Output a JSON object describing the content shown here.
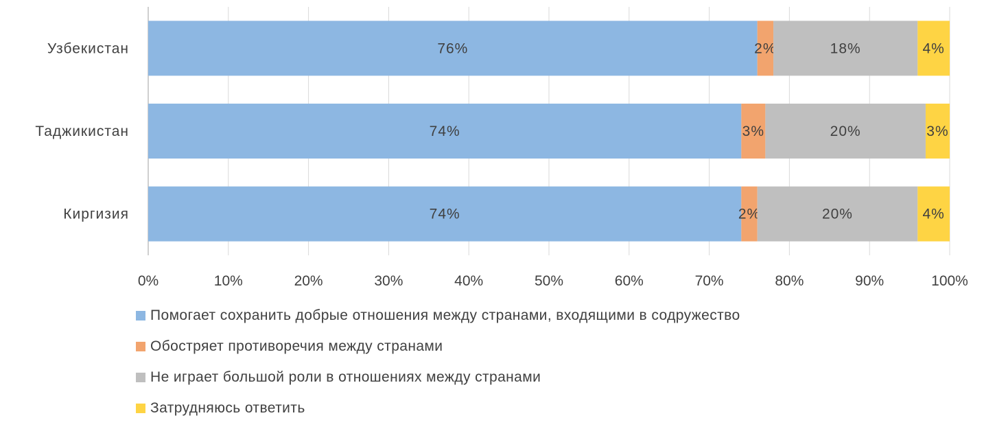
{
  "chart_data": {
    "type": "bar",
    "orientation": "horizontal",
    "stacked": "percent",
    "categories": [
      "Узбекистан",
      "Таджикистан",
      "Киргизия"
    ],
    "series": [
      {
        "name": "Помогает сохранить добрые отношения между странами, входящими в содружество",
        "color": "#8db7e2",
        "values": [
          76,
          74,
          74
        ],
        "labels": [
          "76%",
          "74%",
          "74%"
        ]
      },
      {
        "name": "Обостряет противоречия между странами",
        "color": "#f2a46e",
        "values": [
          2,
          3,
          2
        ],
        "labels": [
          "2%",
          "3%",
          "2%"
        ]
      },
      {
        "name": "Не играет большой роли в отношениях между странами",
        "color": "#bfbfbf",
        "values": [
          18,
          20,
          20
        ],
        "labels": [
          "18%",
          "20%",
          "20%"
        ]
      },
      {
        "name": "Затрудняюсь ответить",
        "color": "#fed444",
        "values": [
          4,
          3,
          4
        ],
        "labels": [
          "4%",
          "3%",
          "4%"
        ]
      }
    ],
    "xlim": [
      0,
      100
    ],
    "x_ticks": [
      "0%",
      "10%",
      "20%",
      "30%",
      "40%",
      "50%",
      "60%",
      "70%",
      "80%",
      "90%",
      "100%"
    ],
    "grid": true,
    "legend_position": "bottom"
  }
}
